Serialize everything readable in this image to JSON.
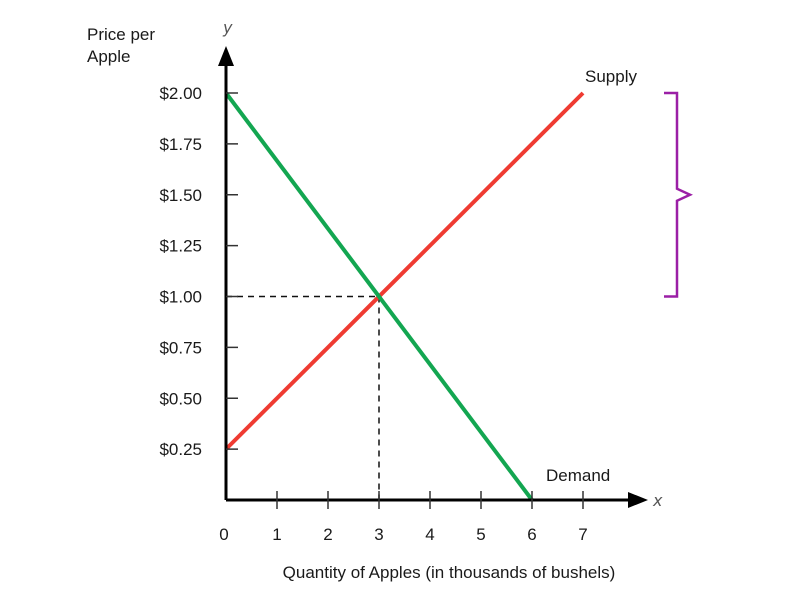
{
  "chart_data": {
    "type": "line",
    "ylabel_lines": [
      "Price per",
      "Apple"
    ],
    "xlabel": "Quantity of Apples (in thousands of bushels)",
    "x_axis_letter": "x",
    "y_axis_letter": "y",
    "xlim": [
      0,
      7
    ],
    "ylim": [
      0,
      2.0
    ],
    "x_ticks": [
      0,
      1,
      2,
      3,
      4,
      5,
      6,
      7
    ],
    "x_tick_labels": [
      "0",
      "1",
      "2",
      "3",
      "4",
      "5",
      "6",
      "7"
    ],
    "y_ticks": [
      0.25,
      0.5,
      0.75,
      1.0,
      1.25,
      1.5,
      1.75,
      2.0
    ],
    "y_tick_labels": [
      "$0.25",
      "$0.50",
      "$0.75",
      "$1.00",
      "$1.25",
      "$1.50",
      "$1.75",
      "$2.00"
    ],
    "series": [
      {
        "name": "Supply",
        "color": "#ef3b32",
        "points": [
          [
            0,
            0.25
          ],
          [
            7,
            2.0
          ]
        ]
      },
      {
        "name": "Demand",
        "color": "#13a651",
        "points": [
          [
            0,
            2.0
          ],
          [
            6,
            0.0
          ]
        ]
      }
    ],
    "equilibrium": {
      "x": 3,
      "y": 1.0
    },
    "bracket": {
      "y_from": 1.0,
      "y_to": 2.0,
      "color": "#9b1fa6"
    }
  }
}
